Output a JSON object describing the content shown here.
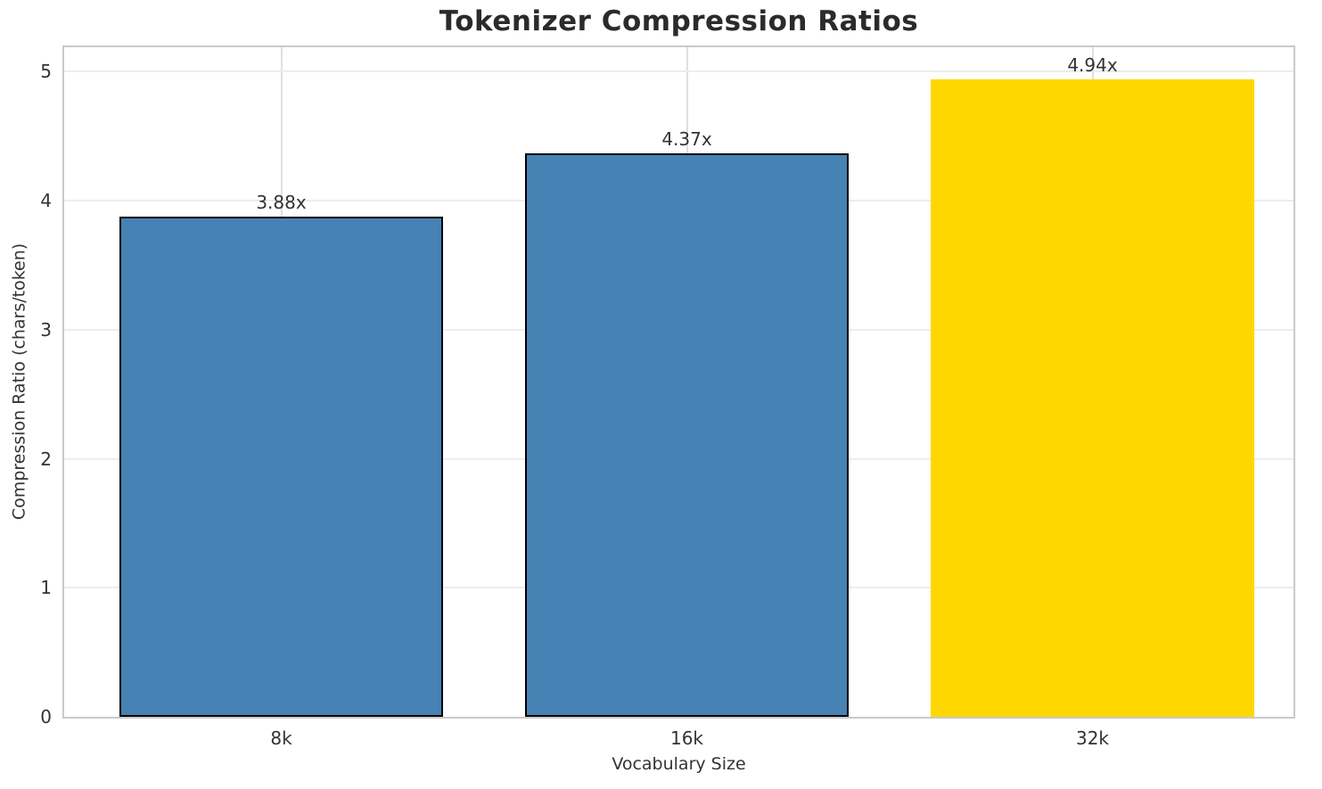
{
  "chart_data": {
    "type": "bar",
    "title": "Tokenizer Compression Ratios",
    "xlabel": "Vocabulary Size",
    "ylabel": "Compression Ratio (chars/token)",
    "categories": [
      "8k",
      "16k",
      "32k"
    ],
    "values": [
      3.88,
      4.37,
      4.94
    ],
    "bar_labels": [
      "3.88x",
      "4.37x",
      "4.94x"
    ],
    "bar_colors": [
      "#4682B4",
      "#4682B4",
      "#FFD700"
    ],
    "bar_edge_colors": [
      "#000000",
      "#000000",
      "none"
    ],
    "yticks": [
      0,
      1,
      2,
      3,
      4,
      5
    ],
    "ylim": [
      0,
      5.19
    ],
    "grid": true,
    "legend_position": "none"
  },
  "colors": {
    "bar_blue": "#4682B4",
    "bar_gold": "#FFD700",
    "bar_edge": "#000000",
    "spine": "#c9c9c9",
    "grid_horizontal": "#ededed",
    "grid_vertical": "#dfdfdf",
    "title_text": "#2b2b2b",
    "tick_text": "#333333",
    "background": "#ffffff"
  }
}
